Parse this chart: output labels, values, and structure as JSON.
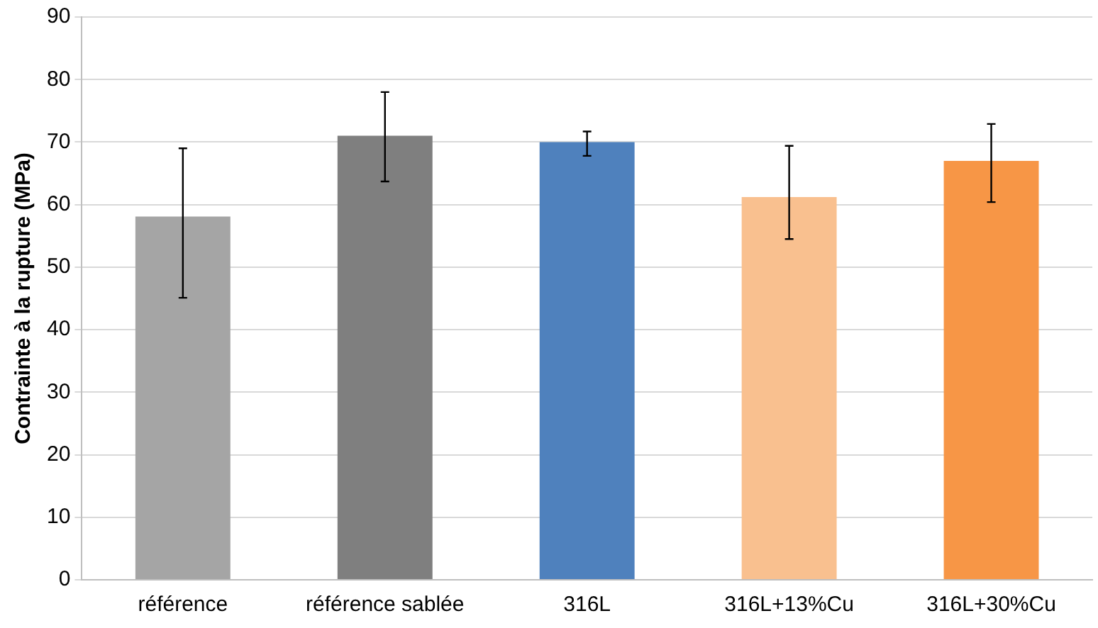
{
  "chart_data": {
    "type": "bar",
    "ylabel": "Contrainte à la rupture (MPa)",
    "categories": [
      "référence",
      "référence sablée",
      "316L",
      "316L+13%Cu",
      "316L+30%Cu"
    ],
    "values": [
      58.1,
      71,
      70,
      61.2,
      67
    ],
    "colors": [
      "#a5a5a5",
      "#7f7f7f",
      "#4f81bd",
      "#f9c08f",
      "#f79646"
    ],
    "errors": [
      [
        45.1,
        69
      ],
      [
        63.7,
        78
      ],
      [
        67.8,
        71.7
      ],
      [
        54.5,
        69.4
      ],
      [
        60.4,
        72.9
      ]
    ],
    "ylim": [
      0,
      90
    ],
    "yticks": [
      0,
      10,
      20,
      30,
      40,
      50,
      60,
      70,
      80,
      90
    ],
    "grid": "y",
    "legend": false
  }
}
